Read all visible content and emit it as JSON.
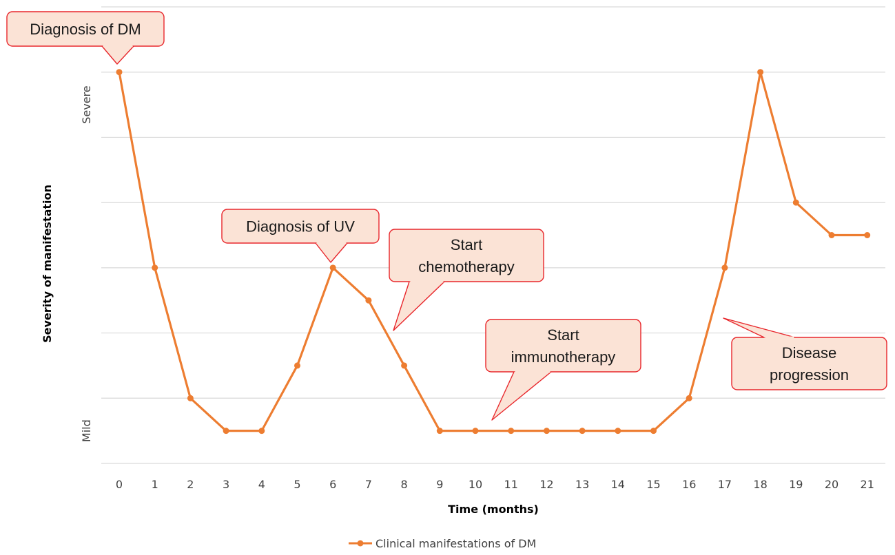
{
  "chart_data": {
    "type": "line",
    "x": [
      0,
      1,
      2,
      3,
      4,
      5,
      6,
      7,
      8,
      9,
      10,
      11,
      12,
      13,
      14,
      15,
      16,
      17,
      18,
      19,
      20,
      21
    ],
    "series": [
      {
        "name": "Clinical manifestations of DM",
        "values": [
          1.0,
          0.4,
          0.0,
          -0.1,
          -0.1,
          0.1,
          0.4,
          0.3,
          0.1,
          -0.1,
          -0.1,
          -0.1,
          -0.1,
          -0.1,
          -0.1,
          -0.1,
          0.0,
          0.4,
          1.0,
          0.6,
          0.5,
          0.5
        ]
      }
    ],
    "xlabel": "Time (months)",
    "ylabel": "Severity of manifestation",
    "xticks": [
      "0",
      "1",
      "2",
      "3",
      "4",
      "5",
      "6",
      "7",
      "8",
      "9",
      "10",
      "11",
      "12",
      "13",
      "14",
      "15",
      "16",
      "17",
      "18",
      "19",
      "20",
      "21"
    ],
    "ytick_labels": {
      "severe": "Severe",
      "mild": "Mild"
    },
    "ylim": [
      -0.2,
      1.2
    ],
    "grid": true,
    "legend_position": "bottom",
    "colors": {
      "line": "#ED7D31",
      "callout_fill": "#FBE3D6",
      "callout_border": "#E8272C",
      "grid": "#D9D9D9"
    },
    "annotations": [
      {
        "lines": [
          "Diagnosis of DM"
        ],
        "x": 0
      },
      {
        "lines": [
          "Diagnosis of UV"
        ],
        "x": 6
      },
      {
        "lines": [
          "Start",
          "chemotherapy"
        ],
        "x": 7.7
      },
      {
        "lines": [
          "Start",
          "immunotherapy"
        ],
        "x": 10.5
      },
      {
        "lines": [
          "Disease",
          "progression"
        ],
        "x": 17
      }
    ]
  }
}
